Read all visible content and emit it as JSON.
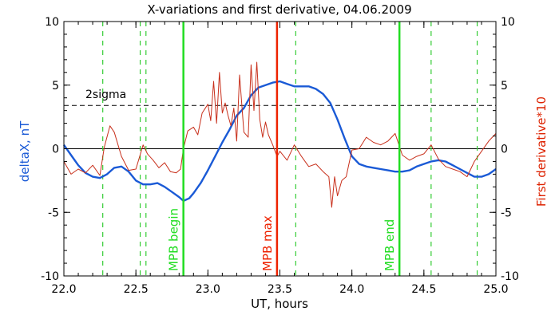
{
  "chart_data": {
    "type": "line",
    "title": "X-variations and first derivative, 04.06.2009",
    "xlabel": "UT, hours",
    "ylabel_left": "deltaX, nT",
    "ylabel_right": "First derivative*10",
    "xlim": [
      22.0,
      25.0
    ],
    "ylim": [
      -10,
      10
    ],
    "x_ticks": [
      "22.0",
      "22.5",
      "23.0",
      "23.5",
      "24.0",
      "24.5",
      "25.0"
    ],
    "x_tick_values": [
      22.0,
      22.5,
      23.0,
      23.5,
      24.0,
      24.5,
      25.0
    ],
    "y_ticks": [
      "-10",
      "-5",
      "0",
      "5",
      "10"
    ],
    "y_tick_values": [
      -10,
      -5,
      0,
      5,
      10
    ],
    "threshold": {
      "label": "2sigma",
      "value": 3.4
    },
    "colors": {
      "deltaX": "#1a5ad6",
      "derivative": "#c8301c",
      "mpb_begin_end": "#22dd22",
      "mpb_max": "#ee2200",
      "dashed_green": "#33cc33",
      "left_label": "#1a5ad6",
      "right_label": "#dd2200"
    },
    "vertical_markers": [
      {
        "x": 22.83,
        "label": "MPB begin",
        "kind": "mpb_begin_end"
      },
      {
        "x": 23.48,
        "label": "MPB max",
        "kind": "mpb_max"
      },
      {
        "x": 24.33,
        "label": "MPB end",
        "kind": "mpb_begin_end"
      }
    ],
    "dashed_lines_x": [
      22.27,
      22.53,
      22.57,
      23.61,
      24.55,
      24.87
    ],
    "series": [
      {
        "key": "deltaX",
        "x": [
          22.0,
          22.05,
          22.1,
          22.15,
          22.2,
          22.25,
          22.3,
          22.35,
          22.4,
          22.45,
          22.5,
          22.55,
          22.6,
          22.65,
          22.7,
          22.75,
          22.8,
          22.83,
          22.87,
          22.9,
          22.95,
          23.0,
          23.05,
          23.1,
          23.15,
          23.2,
          23.25,
          23.3,
          23.35,
          23.4,
          23.45,
          23.5,
          23.55,
          23.6,
          23.65,
          23.7,
          23.75,
          23.8,
          23.85,
          23.9,
          23.95,
          24.0,
          24.05,
          24.1,
          24.15,
          24.2,
          24.25,
          24.3,
          24.35,
          24.4,
          24.45,
          24.5,
          24.55,
          24.6,
          24.65,
          24.7,
          24.75,
          24.8,
          24.85,
          24.9,
          24.95,
          25.0
        ],
        "values": [
          0.3,
          -0.5,
          -1.3,
          -1.9,
          -2.2,
          -2.3,
          -2.0,
          -1.5,
          -1.4,
          -1.8,
          -2.5,
          -2.8,
          -2.8,
          -2.7,
          -3.0,
          -3.4,
          -3.8,
          -4.1,
          -3.9,
          -3.5,
          -2.7,
          -1.7,
          -0.6,
          0.5,
          1.5,
          2.6,
          3.2,
          4.2,
          4.8,
          5.0,
          5.2,
          5.3,
          5.1,
          4.9,
          4.9,
          4.9,
          4.7,
          4.3,
          3.6,
          2.3,
          0.8,
          -0.6,
          -1.2,
          -1.4,
          -1.5,
          -1.6,
          -1.7,
          -1.8,
          -1.8,
          -1.7,
          -1.4,
          -1.2,
          -1.0,
          -0.9,
          -1.0,
          -1.3,
          -1.6,
          -1.9,
          -2.2,
          -2.2,
          -2.0,
          -1.6
        ]
      },
      {
        "key": "derivative",
        "x": [
          22.0,
          22.05,
          22.1,
          22.15,
          22.2,
          22.25,
          22.28,
          22.32,
          22.35,
          22.4,
          22.45,
          22.5,
          22.55,
          22.58,
          22.62,
          22.66,
          22.7,
          22.74,
          22.78,
          22.81,
          22.83,
          22.86,
          22.9,
          22.93,
          22.96,
          23.0,
          23.02,
          23.04,
          23.06,
          23.08,
          23.1,
          23.12,
          23.14,
          23.16,
          23.18,
          23.2,
          23.22,
          23.25,
          23.28,
          23.3,
          23.32,
          23.34,
          23.36,
          23.38,
          23.4,
          23.42,
          23.45,
          23.48,
          23.5,
          23.55,
          23.6,
          23.65,
          23.7,
          23.75,
          23.8,
          23.84,
          23.86,
          23.88,
          23.9,
          23.93,
          23.96,
          24.0,
          24.05,
          24.1,
          24.15,
          24.2,
          24.25,
          24.3,
          24.35,
          24.4,
          24.45,
          24.5,
          24.55,
          24.6,
          24.65,
          24.7,
          24.75,
          24.8,
          24.85,
          24.9,
          24.95,
          25.0
        ],
        "values": [
          -1.0,
          -2.0,
          -1.6,
          -1.9,
          -1.3,
          -2.1,
          0.1,
          1.8,
          1.3,
          -0.6,
          -1.7,
          -1.6,
          0.3,
          -0.4,
          -0.9,
          -1.5,
          -1.1,
          -1.8,
          -1.9,
          -1.6,
          0.0,
          1.4,
          1.7,
          1.1,
          2.8,
          3.5,
          2.2,
          5.3,
          2.0,
          6.0,
          2.8,
          3.6,
          2.6,
          1.8,
          3.2,
          0.6,
          5.8,
          1.3,
          0.9,
          6.6,
          3.0,
          6.8,
          2.3,
          0.9,
          2.1,
          1.1,
          0.3,
          -0.6,
          -0.2,
          -0.9,
          0.3,
          -0.6,
          -1.4,
          -1.2,
          -1.8,
          -2.2,
          -4.6,
          -2.2,
          -3.7,
          -2.5,
          -2.2,
          -0.1,
          0.0,
          0.9,
          0.5,
          0.3,
          0.6,
          1.2,
          -0.5,
          -0.9,
          -0.6,
          -0.4,
          0.3,
          -0.8,
          -1.4,
          -1.6,
          -1.8,
          -2.2,
          -1.0,
          -0.2,
          0.6,
          1.2
        ]
      }
    ]
  }
}
